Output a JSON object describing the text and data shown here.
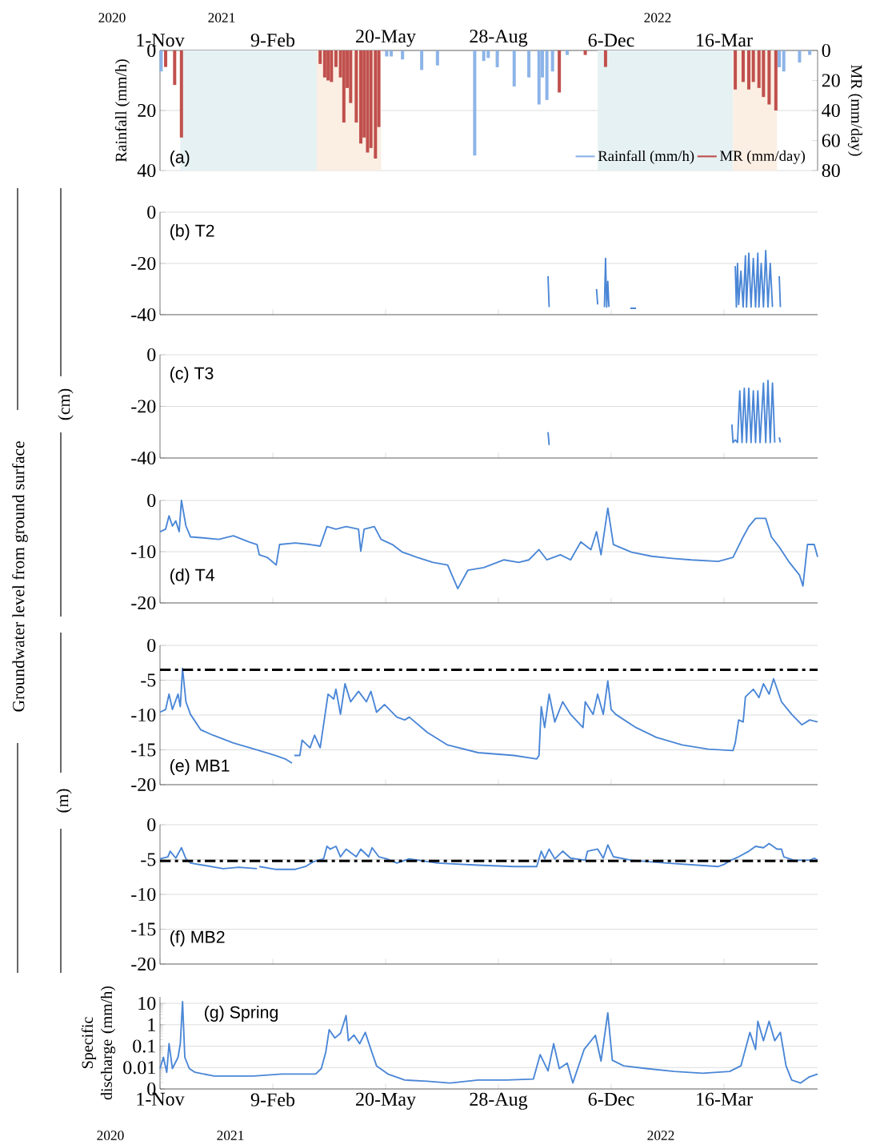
{
  "chart_data": [
    {
      "type": "bar",
      "xlim": [
        "2020-11-01",
        "2022-06-07"
      ],
      "xticks": [
        {
          "value": "2020-11-01",
          "label": "1-Nov"
        },
        {
          "value": "2021-02-09",
          "label": "9-Feb"
        },
        {
          "value": "2021-05-20",
          "label": "20-May"
        },
        {
          "value": "2021-08-28",
          "label": "28-Aug"
        },
        {
          "value": "2021-12-06",
          "label": "6-Dec"
        },
        {
          "value": "2022-03-16",
          "label": "16-Mar"
        }
      ],
      "ylim": [
        40,
        0
      ],
      "yticks": [
        0,
        20,
        40
      ],
      "y2lim": [
        80,
        0
      ],
      "y2ticks": [
        0,
        20,
        40,
        60,
        80
      ],
      "ylabel": "Rainfall (mm/h)",
      "y2label": "MR (mm/day)",
      "grid": "y",
      "legend": "bottom right",
      "bands": [
        {
          "axis": "x",
          "from": "2020-11-19",
          "to": "2021-03-20",
          "color": "#e6f1f3"
        },
        {
          "axis": "x",
          "from": "2021-03-20",
          "to": "2021-05-16",
          "color": "#fbeee3"
        },
        {
          "axis": "x",
          "from": "2021-11-24",
          "to": "2022-03-24",
          "color": "#e6f1f3"
        },
        {
          "axis": "x",
          "from": "2022-03-24",
          "to": "2022-05-02",
          "color": "#fbeee3"
        }
      ],
      "annotations": [
        "(a)",
        "2020",
        "2021",
        "2022"
      ],
      "series": [
        {
          "name": "Rainfall (mm/h)",
          "color": "#8db4e8",
          "x": [
            "2020-11-02",
            "2021-05-21",
            "2021-05-25",
            "2021-06-04",
            "2021-06-21",
            "2021-07-05",
            "2021-08-07",
            "2021-08-15",
            "2021-08-19",
            "2021-08-27",
            "2021-09-11",
            "2021-09-24",
            "2021-10-03",
            "2021-10-06",
            "2021-10-10",
            "2021-10-15",
            "2021-10-28",
            "2022-05-04",
            "2022-05-08",
            "2022-05-22",
            "2022-05-31"
          ],
          "values": [
            7,
            2,
            2,
            3,
            6.5,
            5,
            35,
            3.5,
            2.5,
            5.6,
            12,
            9,
            18,
            9,
            16.5,
            7,
            1.5,
            5.6,
            7,
            4,
            1.5
          ]
        },
        {
          "name": "MR (mm/day)",
          "color": "#c0504d",
          "axis": "y2",
          "x": [
            "2020-11-06",
            "2020-11-14",
            "2020-11-20",
            "2021-03-23",
            "2021-03-27",
            "2021-03-30",
            "2021-04-02",
            "2021-04-06",
            "2021-04-10",
            "2021-04-13",
            "2021-04-16",
            "2021-04-19",
            "2021-04-24",
            "2021-04-28",
            "2021-05-01",
            "2021-05-04",
            "2021-05-07",
            "2021-05-11",
            "2021-05-14",
            "2021-10-21",
            "2021-11-13",
            "2021-12-01",
            "2022-03-26",
            "2022-04-02",
            "2022-04-07",
            "2022-04-11",
            "2022-04-16",
            "2022-04-20",
            "2022-04-25",
            "2022-05-01"
          ],
          "values": [
            11,
            23,
            58,
            9,
            18,
            20,
            21,
            11,
            18,
            48,
            25,
            35,
            48,
            62,
            58,
            68,
            65,
            72,
            51,
            28,
            3,
            11,
            26,
            21,
            26,
            21,
            25,
            31,
            36,
            40
          ]
        }
      ]
    },
    {
      "type": "line",
      "xlim": [
        "2020-11-01",
        "2022-06-07"
      ],
      "tick_labels": "y",
      "xticks": [
        {
          "value": "2020-11-01",
          "label": null
        },
        {
          "value": "2021-02-09",
          "label": null
        },
        {
          "value": "2021-05-20",
          "label": null
        },
        {
          "value": "2021-08-28",
          "label": null
        },
        {
          "value": "2021-12-06",
          "label": null
        },
        {
          "value": "2022-03-16",
          "label": null
        }
      ],
      "ylim": [
        -40,
        0
      ],
      "yticks": [
        -40,
        -20,
        0
      ],
      "grid": "y",
      "annotations": [
        "(b) T2",
        "(cm)"
      ],
      "series": [
        {
          "color": "#4a86d6",
          "x": [
            "2021-10-11",
            "2021-10-12",
            "2021-10-13",
            "2021-11-23",
            "2021-11-24",
            "2021-11-26",
            "2021-11-30",
            "2021-12-01",
            "2021-12-02",
            "2021-12-03",
            "2021-12-04",
            "2021-12-10",
            "2021-12-23",
            "2021-12-28",
            "2022-03-10",
            "2022-03-26",
            "2022-03-27",
            "2022-03-28",
            "2022-03-29",
            "2022-03-31",
            "2022-04-02",
            "2022-04-04",
            "2022-04-05",
            "2022-04-07",
            "2022-04-09",
            "2022-04-11",
            "2022-04-13",
            "2022-04-15",
            "2022-04-16",
            "2022-04-18",
            "2022-04-20",
            "2022-04-22",
            "2022-04-24",
            "2022-04-26",
            "2022-04-28",
            "2022-05-01",
            "2022-05-04",
            "2022-05-05"
          ],
          "values": [
            -25,
            -37,
            null,
            -30,
            -36,
            null,
            -37,
            -18,
            -37,
            -27,
            -37,
            null,
            -37.5,
            -37.5,
            null,
            -21,
            -37,
            -20,
            -36,
            -23,
            -37,
            -17,
            -37,
            -16,
            -37,
            -18,
            -37,
            -16,
            -37,
            -20,
            -37,
            -15,
            -37,
            -20,
            -37,
            null,
            -25,
            -37
          ]
        }
      ]
    },
    {
      "type": "line",
      "xlim": [
        "2020-11-01",
        "2022-06-07"
      ],
      "tick_labels": "y",
      "xticks": [
        {
          "value": "2020-11-01",
          "label": null
        },
        {
          "value": "2021-02-09",
          "label": null
        },
        {
          "value": "2021-05-20",
          "label": null
        },
        {
          "value": "2021-08-28",
          "label": null
        },
        {
          "value": "2021-12-06",
          "label": null
        },
        {
          "value": "2022-03-16",
          "label": null
        }
      ],
      "ylim": [
        -40,
        0
      ],
      "yticks": [
        -40,
        -20,
        0
      ],
      "grid": "y",
      "annotations": [
        "(c) T3"
      ],
      "series": [
        {
          "color": "#4a86d6",
          "x": [
            "2021-10-11",
            "2021-10-12",
            "2021-10-20",
            "2022-03-23",
            "2022-03-24",
            "2022-03-26",
            "2022-03-28",
            "2022-03-30",
            "2022-04-01",
            "2022-04-03",
            "2022-04-05",
            "2022-04-07",
            "2022-04-09",
            "2022-04-11",
            "2022-04-13",
            "2022-04-15",
            "2022-04-17",
            "2022-04-20",
            "2022-04-22",
            "2022-04-24",
            "2022-04-26",
            "2022-04-28",
            "2022-04-30",
            "2022-05-02",
            "2022-05-04",
            "2022-05-05"
          ],
          "values": [
            -30,
            -35,
            null,
            -27,
            -34,
            -33,
            -34,
            -14,
            -34,
            -13,
            -34,
            -13,
            -34,
            -14,
            -34,
            -14,
            -34,
            -11,
            -34,
            -10,
            -34,
            -11,
            -34,
            null,
            -32,
            -34
          ]
        }
      ]
    },
    {
      "type": "line",
      "xlim": [
        "2020-11-01",
        "2022-06-07"
      ],
      "tick_labels": "y",
      "xticks": [
        {
          "value": "2020-11-01",
          "label": null
        },
        {
          "value": "2021-02-09",
          "label": null
        },
        {
          "value": "2021-05-20",
          "label": null
        },
        {
          "value": "2021-08-28",
          "label": null
        },
        {
          "value": "2021-12-06",
          "label": null
        },
        {
          "value": "2022-03-16",
          "label": null
        }
      ],
      "ylim": [
        -20,
        0
      ],
      "yticks": [
        -20,
        -10,
        0
      ],
      "grid": "y",
      "annotations": [
        "(d) T4",
        "Groundwater level from ground surface"
      ],
      "series": [
        {
          "color": "#4a86d6",
          "x": [
            "2020-11-01",
            "2020-11-06",
            "2020-11-09",
            "2020-11-12",
            "2020-11-15",
            "2020-11-18",
            "2020-11-20",
            "2020-11-24",
            "2020-11-28",
            "2020-12-09",
            "2020-12-23",
            "2021-01-05",
            "2021-01-19",
            "2021-01-26",
            "2021-01-28",
            "2021-02-04",
            "2021-02-12",
            "2021-02-15",
            "2021-03-01",
            "2021-03-14",
            "2021-03-23",
            "2021-03-29",
            "2021-04-06",
            "2021-04-15",
            "2021-04-26",
            "2021-04-28",
            "2021-05-01",
            "2021-05-10",
            "2021-05-16",
            "2021-05-26",
            "2021-06-04",
            "2021-06-17",
            "2021-07-01",
            "2021-07-14",
            "2021-07-23",
            "2021-08-01",
            "2021-08-15",
            "2021-09-02",
            "2021-09-15",
            "2021-09-24",
            "2021-10-03",
            "2021-10-10",
            "2021-10-22",
            "2021-10-31",
            "2021-11-09",
            "2021-11-18",
            "2021-11-23",
            "2021-11-27",
            "2021-12-03",
            "2021-12-08",
            "2021-12-24",
            "2022-01-11",
            "2022-01-29",
            "2022-02-15",
            "2022-03-11",
            "2022-03-24",
            "2022-04-02",
            "2022-04-07",
            "2022-04-13",
            "2022-04-22",
            "2022-04-27",
            "2022-05-04",
            "2022-05-13",
            "2022-05-22",
            "2022-05-25",
            "2022-05-29",
            "2022-06-04",
            "2022-06-07"
          ],
          "values": [
            -6.1,
            -5.6,
            -3,
            -5,
            -4,
            -6.1,
            0,
            -5,
            -7.1,
            -7.3,
            -7.6,
            -6.9,
            -8.1,
            -8.6,
            -10.6,
            -11.1,
            -12.6,
            -8.6,
            -8.3,
            -8.6,
            -8.9,
            -5.1,
            -5.6,
            -5.1,
            -5.6,
            -9.9,
            -5.6,
            -5.1,
            -7.6,
            -8.6,
            -10.1,
            -11.1,
            -12.1,
            -12.6,
            -17.2,
            -13.6,
            -13.1,
            -11.6,
            -12.1,
            -11.6,
            -9.6,
            -11.6,
            -10.6,
            -11.6,
            -8.1,
            -9.6,
            -6.1,
            -10.6,
            -1.5,
            -8.6,
            -10.1,
            -10.9,
            -11.3,
            -11.6,
            -11.9,
            -11.1,
            -7.1,
            -5.1,
            -3.5,
            -3.5,
            -7.1,
            -9.1,
            -12.1,
            -14.6,
            -16.7,
            -8.6,
            -8.6,
            -11
          ]
        }
      ]
    },
    {
      "type": "line",
      "xlim": [
        "2020-11-01",
        "2022-06-07"
      ],
      "tick_labels": "y",
      "xticks": [
        {
          "value": "2020-11-01",
          "label": null
        },
        {
          "value": "2021-02-09",
          "label": null
        },
        {
          "value": "2021-05-20",
          "label": null
        },
        {
          "value": "2021-08-28",
          "label": null
        },
        {
          "value": "2021-12-06",
          "label": null
        },
        {
          "value": "2022-03-16",
          "label": null
        }
      ],
      "ylim": [
        -20,
        0
      ],
      "yticks": [
        -20,
        -15,
        -10,
        -5,
        0
      ],
      "grid": "y",
      "ref_lines": [
        {
          "axis": "y",
          "value": -3.5,
          "color": "#000000",
          "line_style": "dashdot"
        }
      ],
      "annotations": [
        "(e) MB1",
        "(m)"
      ],
      "series": [
        {
          "color": "#4a86d6",
          "x": [
            "2020-11-01",
            "2020-11-06",
            "2020-11-09",
            "2020-11-12",
            "2020-11-17",
            "2020-11-19",
            "2020-11-21",
            "2020-11-24",
            "2020-11-28",
            "2020-12-07",
            "2020-12-18",
            "2021-01-05",
            "2021-01-28",
            "2021-02-11",
            "2021-02-20",
            "2021-02-26",
            "2021-02-27",
            "2021-02-28",
            "2021-03-05",
            "2021-03-07",
            "2021-03-14",
            "2021-03-18",
            "2021-03-23",
            "2021-03-27",
            "2021-03-30",
            "2021-04-04",
            "2021-04-06",
            "2021-04-10",
            "2021-04-14",
            "2021-04-19",
            "2021-04-26",
            "2021-05-03",
            "2021-05-07",
            "2021-05-12",
            "2021-05-19",
            "2021-05-30",
            "2021-06-06",
            "2021-06-10",
            "2021-06-26",
            "2021-07-14",
            "2021-08-10",
            "2021-09-11",
            "2021-10-01",
            "2021-10-03",
            "2021-10-05",
            "2021-10-08",
            "2021-10-12",
            "2021-10-17",
            "2021-10-24",
            "2021-10-31",
            "2021-11-11",
            "2021-11-13",
            "2021-11-20",
            "2021-11-24",
            "2021-11-29",
            "2021-12-03",
            "2021-12-06",
            "2021-12-10",
            "2021-12-28",
            "2022-01-15",
            "2022-02-07",
            "2022-03-02",
            "2022-03-24",
            "2022-03-26",
            "2022-03-29",
            "2022-04-02",
            "2022-04-04",
            "2022-04-11",
            "2022-04-16",
            "2022-04-20",
            "2022-04-25",
            "2022-04-29",
            "2022-05-06",
            "2022-05-15",
            "2022-05-24",
            "2022-05-31",
            "2022-06-07"
          ],
          "values": [
            -9.6,
            -9.2,
            -7,
            -9.2,
            -7,
            -8.8,
            -3.3,
            -8.1,
            -9.9,
            -12.1,
            -12.9,
            -14,
            -15.1,
            -15.8,
            -16.3,
            -16.9,
            null,
            -15.8,
            -15.8,
            -13.6,
            -14.7,
            -12.9,
            -14.7,
            -10.3,
            -7,
            -7.7,
            -6.3,
            -9.9,
            -5.5,
            -8.1,
            -6.6,
            -8.1,
            -6.6,
            -9.6,
            -8.5,
            -10.3,
            -10.7,
            -10.3,
            -12.5,
            -14.3,
            -15.4,
            -15.8,
            -16.3,
            -15.8,
            -8.8,
            -11.8,
            -7,
            -11,
            -8.1,
            -9.9,
            -11.8,
            -8.1,
            -9.9,
            -7,
            -9.9,
            -5.1,
            -9.2,
            -9.9,
            -11.8,
            -13.2,
            -14.3,
            -14.9,
            -15.1,
            -14,
            -10.7,
            -11,
            -7.4,
            -6.3,
            -7.5,
            -5.5,
            -7,
            -4.8,
            -8.1,
            -9.9,
            -11.4,
            -10.7,
            -11
          ]
        }
      ]
    },
    {
      "type": "line",
      "xlim": [
        "2020-11-01",
        "2022-06-07"
      ],
      "tick_labels": "y",
      "xticks": [
        {
          "value": "2020-11-01",
          "label": null
        },
        {
          "value": "2021-02-09",
          "label": null
        },
        {
          "value": "2021-05-20",
          "label": null
        },
        {
          "value": "2021-08-28",
          "label": null
        },
        {
          "value": "2021-12-06",
          "label": null
        },
        {
          "value": "2022-03-16",
          "label": null
        }
      ],
      "ylim": [
        -20,
        0
      ],
      "yticks": [
        -20,
        -15,
        -10,
        -5,
        0
      ],
      "grid": "y",
      "ref_lines": [
        {
          "axis": "y",
          "value": -5.2,
          "color": "#000000",
          "line_style": "dashdot"
        }
      ],
      "annotations": [
        "(f) MB2"
      ],
      "series": [
        {
          "color": "#4a86d6",
          "x": [
            "2020-11-01",
            "2020-11-08",
            "2020-11-10",
            "2020-11-15",
            "2020-11-20",
            "2020-11-24",
            "2020-11-28",
            "2020-12-09",
            "2020-12-27",
            "2021-01-10",
            "2021-01-26",
            "2021-01-27",
            "2021-01-28",
            "2021-02-11",
            "2021-03-01",
            "2021-03-10",
            "2021-03-17",
            "2021-03-26",
            "2021-03-29",
            "2021-04-01",
            "2021-04-06",
            "2021-04-10",
            "2021-04-15",
            "2021-04-24",
            "2021-04-28",
            "2021-05-05",
            "2021-05-08",
            "2021-05-14",
            "2021-05-21",
            "2021-05-30",
            "2021-06-10",
            "2021-07-05",
            "2021-08-10",
            "2021-09-11",
            "2021-10-01",
            "2021-10-05",
            "2021-10-08",
            "2021-10-12",
            "2021-10-17",
            "2021-10-24",
            "2021-10-31",
            "2021-11-13",
            "2021-11-15",
            "2021-11-24",
            "2021-11-29",
            "2021-12-03",
            "2021-12-08",
            "2021-12-24",
            "2022-01-24",
            "2022-03-11",
            "2022-03-16",
            "2022-03-22",
            "2022-03-29",
            "2022-04-07",
            "2022-04-13",
            "2022-04-20",
            "2022-04-25",
            "2022-05-02",
            "2022-05-06",
            "2022-05-08",
            "2022-05-17",
            "2022-05-31",
            "2022-06-04",
            "2022-06-07"
          ],
          "values": [
            -4.9,
            -4.6,
            -3.8,
            -4.8,
            -3.3,
            -4.9,
            -5.5,
            -5.8,
            -6.3,
            -6.1,
            -6.3,
            null,
            -6,
            -6.4,
            -6.4,
            -6,
            -5.3,
            -4.9,
            -3.1,
            -3.5,
            -3.1,
            -4.6,
            -3.5,
            -4.6,
            -3.5,
            -4.6,
            -3.3,
            -4.6,
            -4.9,
            -5.5,
            -4.9,
            -5.5,
            -5.8,
            -6,
            -6,
            -3.8,
            -4.9,
            -3.5,
            -4.9,
            -3.8,
            -4.8,
            -5.1,
            -3.8,
            -3.5,
            -4.8,
            -2.9,
            -4.6,
            -5.1,
            -5.5,
            -6,
            -5.7,
            -5.1,
            -4.6,
            -3.8,
            -3.1,
            -3.3,
            -2.7,
            -3.5,
            -3.5,
            -4.6,
            -5.1,
            -5.1,
            -4.8,
            -5.1
          ]
        }
      ]
    },
    {
      "type": "line",
      "xlim": [
        "2020-11-01",
        "2022-06-07"
      ],
      "xticks": [
        {
          "value": "2020-11-01",
          "label": "1-Nov"
        },
        {
          "value": "2021-02-09",
          "label": "9-Feb"
        },
        {
          "value": "2021-05-20",
          "label": "20-May"
        },
        {
          "value": "2021-08-28",
          "label": "28-Aug"
        },
        {
          "value": "2021-12-06",
          "label": "6-Dec"
        },
        {
          "value": "2022-03-16",
          "label": "16-Mar"
        }
      ],
      "ylim": [
        0.001,
        20
      ],
      "yticks": [
        {
          "value": 0.001,
          "label": "0"
        },
        0.01,
        0.1,
        1,
        10
      ],
      "log": "y",
      "grid": "y",
      "ylabel": "Specific discharge (mm/h)",
      "annotations": [
        "(g) Spring",
        "2020",
        "2021",
        "2022"
      ],
      "series": [
        {
          "color": "#4a86d6",
          "x": [
            "2020-11-01",
            "2020-11-04",
            "2020-11-07",
            "2020-11-09",
            "2020-11-12",
            "2020-11-17",
            "2020-11-19",
            "2020-11-21",
            "2020-11-23",
            "2020-11-27",
            "2020-12-02",
            "2020-12-19",
            "2021-01-23",
            "2021-02-17",
            "2021-03-09",
            "2021-03-19",
            "2021-03-24",
            "2021-03-28",
            "2021-03-31",
            "2021-04-05",
            "2021-04-10",
            "2021-04-15",
            "2021-04-17",
            "2021-04-22",
            "2021-04-27",
            "2021-05-02",
            "2021-05-07",
            "2021-05-12",
            "2021-05-22",
            "2021-06-06",
            "2021-06-26",
            "2021-07-16",
            "2021-08-10",
            "2021-09-04",
            "2021-09-28",
            "2021-10-04",
            "2021-10-11",
            "2021-10-16",
            "2021-10-21",
            "2021-10-28",
            "2021-11-02",
            "2021-11-12",
            "2021-11-22",
            "2021-11-27",
            "2021-12-03",
            "2021-12-07",
            "2021-12-17",
            "2022-01-06",
            "2022-01-31",
            "2022-02-25",
            "2022-03-21",
            "2022-03-31",
            "2022-04-08",
            "2022-04-13",
            "2022-04-15",
            "2022-04-20",
            "2022-04-25",
            "2022-04-30",
            "2022-05-05",
            "2022-05-10",
            "2022-05-15",
            "2022-05-23",
            "2022-05-30",
            "2022-06-07"
          ],
          "values": [
            0.009,
            0.03,
            0.006,
            0.13,
            0.009,
            0.03,
            0.13,
            12,
            0.03,
            0.009,
            0.006,
            0.004,
            0.004,
            0.005,
            0.005,
            0.005,
            0.009,
            0.054,
            0.59,
            0.24,
            0.4,
            2.7,
            0.18,
            0.33,
            0.13,
            0.44,
            0.07,
            0.012,
            0.005,
            0.0026,
            0.0023,
            0.0019,
            0.0026,
            0.0026,
            0.0029,
            0.04,
            0.007,
            0.13,
            0.009,
            0.016,
            0.0019,
            0.07,
            0.32,
            0.02,
            3.6,
            0.022,
            0.012,
            0.009,
            0.0066,
            0.0054,
            0.0066,
            0.012,
            0.44,
            0.07,
            1.45,
            0.18,
            1.45,
            0.18,
            0.44,
            0.012,
            0.0026,
            0.0019,
            0.0035,
            0.005
          ]
        }
      ]
    }
  ]
}
